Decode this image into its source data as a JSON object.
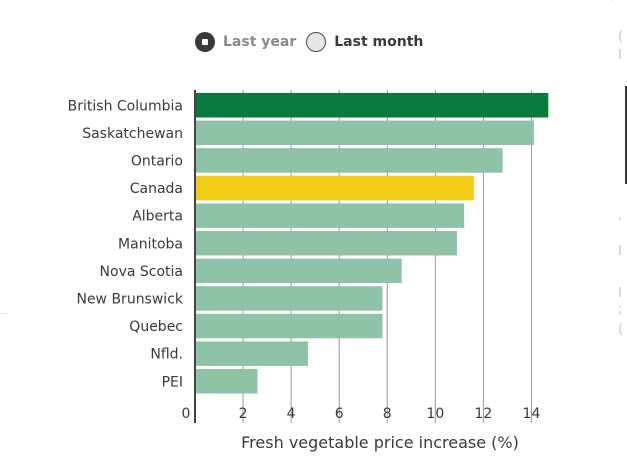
{
  "toggle": {
    "options": [
      "Last year",
      "Last month"
    ],
    "selected": "Last year"
  },
  "colors": {
    "highlight": "#087a3e",
    "canada": "#f0cc17",
    "default": "#8fc3a7",
    "grid": "#9a9a9a"
  },
  "chart_data": {
    "type": "bar",
    "orientation": "horizontal",
    "categories": [
      "British Columbia",
      "Saskatchewan",
      "Ontario",
      "Canada",
      "Alberta",
      "Manitoba",
      "Nova Scotia",
      "New Brunswick",
      "Quebec",
      "Nfld.",
      "PEI"
    ],
    "values": [
      14.7,
      14.1,
      12.8,
      11.6,
      11.2,
      10.9,
      8.6,
      7.8,
      7.8,
      4.7,
      2.6
    ],
    "highlight": {
      "British Columbia": "highlight",
      "Canada": "canada"
    },
    "xlabel": "Fresh vegetable price increase (%)",
    "ylabel": "",
    "xlim": [
      0,
      15
    ],
    "xticks": [
      "0",
      "2",
      "4",
      "6",
      "8",
      "10",
      "12",
      "14"
    ],
    "grid": "vertical"
  }
}
